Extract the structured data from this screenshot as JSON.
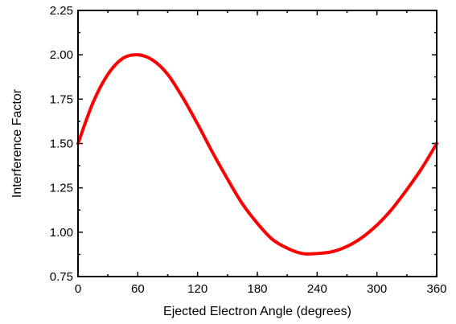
{
  "chart_data": {
    "type": "line",
    "title": "",
    "xlabel": "Ejected Electron Angle (degrees)",
    "ylabel": "Interference Factor",
    "xlim": [
      0,
      360
    ],
    "ylim": [
      0.75,
      2.25
    ],
    "xticks": [
      0,
      60,
      120,
      180,
      240,
      300,
      360
    ],
    "xtick_labels": [
      "0",
      "60",
      "120",
      "180",
      "240",
      "300",
      "360"
    ],
    "yticks": [
      0.75,
      1.0,
      1.25,
      1.5,
      1.75,
      2.0,
      2.25
    ],
    "ytick_labels": [
      "0.75",
      "1.00",
      "1.25",
      "1.50",
      "1.75",
      "2.00",
      "2.25"
    ],
    "grid": false,
    "legend": "none",
    "series": [
      {
        "color": "#ff0000",
        "x": [
          0,
          15,
          30,
          45,
          60,
          75,
          90,
          105,
          120,
          135,
          150,
          165,
          180,
          195,
          210,
          225,
          240,
          255,
          270,
          285,
          300,
          315,
          330,
          345,
          360
        ],
        "y": [
          1.5,
          1.73,
          1.89,
          1.98,
          2.0,
          1.97,
          1.89,
          1.76,
          1.61,
          1.45,
          1.3,
          1.16,
          1.05,
          0.96,
          0.91,
          0.88,
          0.88,
          0.89,
          0.92,
          0.97,
          1.04,
          1.13,
          1.24,
          1.36,
          1.5
        ]
      }
    ]
  }
}
